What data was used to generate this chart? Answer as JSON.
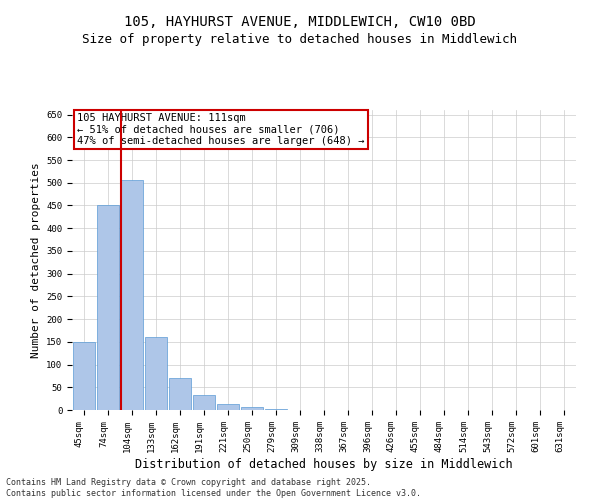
{
  "title_line1": "105, HAYHURST AVENUE, MIDDLEWICH, CW10 0BD",
  "title_line2": "Size of property relative to detached houses in Middlewich",
  "xlabel": "Distribution of detached houses by size in Middlewich",
  "ylabel": "Number of detached properties",
  "categories": [
    "45sqm",
    "74sqm",
    "104sqm",
    "133sqm",
    "162sqm",
    "191sqm",
    "221sqm",
    "250sqm",
    "279sqm",
    "309sqm",
    "338sqm",
    "367sqm",
    "396sqm",
    "426sqm",
    "455sqm",
    "484sqm",
    "514sqm",
    "543sqm",
    "572sqm",
    "601sqm",
    "631sqm"
  ],
  "values": [
    150,
    450,
    505,
    160,
    70,
    32,
    13,
    6,
    2,
    1,
    0,
    0,
    0,
    0,
    0,
    0,
    0,
    0,
    0,
    0,
    0
  ],
  "bar_color": "#aec6e8",
  "bar_edge_color": "#5b9bd5",
  "vline_x_index": 2,
  "vline_color": "#cc0000",
  "annotation_text": "105 HAYHURST AVENUE: 111sqm\n← 51% of detached houses are smaller (706)\n47% of semi-detached houses are larger (648) →",
  "annotation_box_color": "#ffffff",
  "annotation_box_edge_color": "#cc0000",
  "ylim": [
    0,
    660
  ],
  "yticks": [
    0,
    50,
    100,
    150,
    200,
    250,
    300,
    350,
    400,
    450,
    500,
    550,
    600,
    650
  ],
  "background_color": "#ffffff",
  "grid_color": "#cccccc",
  "footer_text": "Contains HM Land Registry data © Crown copyright and database right 2025.\nContains public sector information licensed under the Open Government Licence v3.0.",
  "title_fontsize": 10,
  "subtitle_fontsize": 9,
  "xlabel_fontsize": 8.5,
  "ylabel_fontsize": 8,
  "tick_fontsize": 6.5,
  "annotation_fontsize": 7.5,
  "footer_fontsize": 6
}
